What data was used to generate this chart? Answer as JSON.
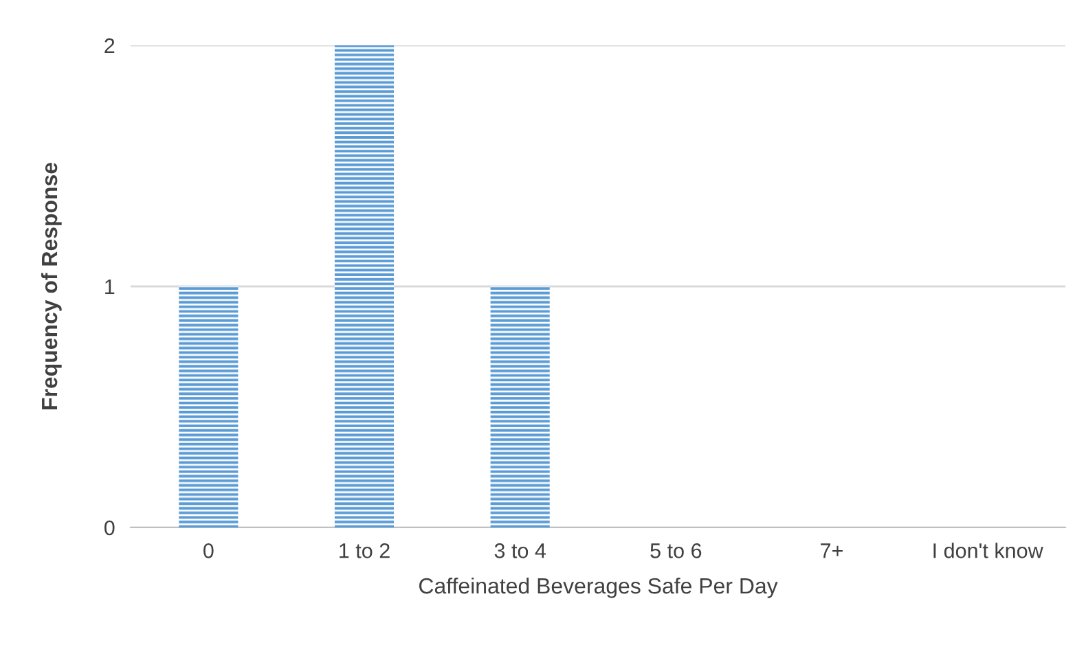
{
  "chart_data": {
    "type": "bar",
    "xlabel": "Caffeinated Beverages Safe Per Day",
    "ylabel": "Frequency of Response",
    "categories": [
      "0",
      "1 to 2",
      "3 to 4",
      "5 to 6",
      "7+",
      "I don't know"
    ],
    "values": [
      1,
      2,
      1,
      0,
      0,
      0
    ],
    "color": "#5b9bd5",
    "ylim": [
      0,
      2
    ],
    "yticks": [
      0,
      1,
      2
    ],
    "grid": "y",
    "legend": false
  }
}
